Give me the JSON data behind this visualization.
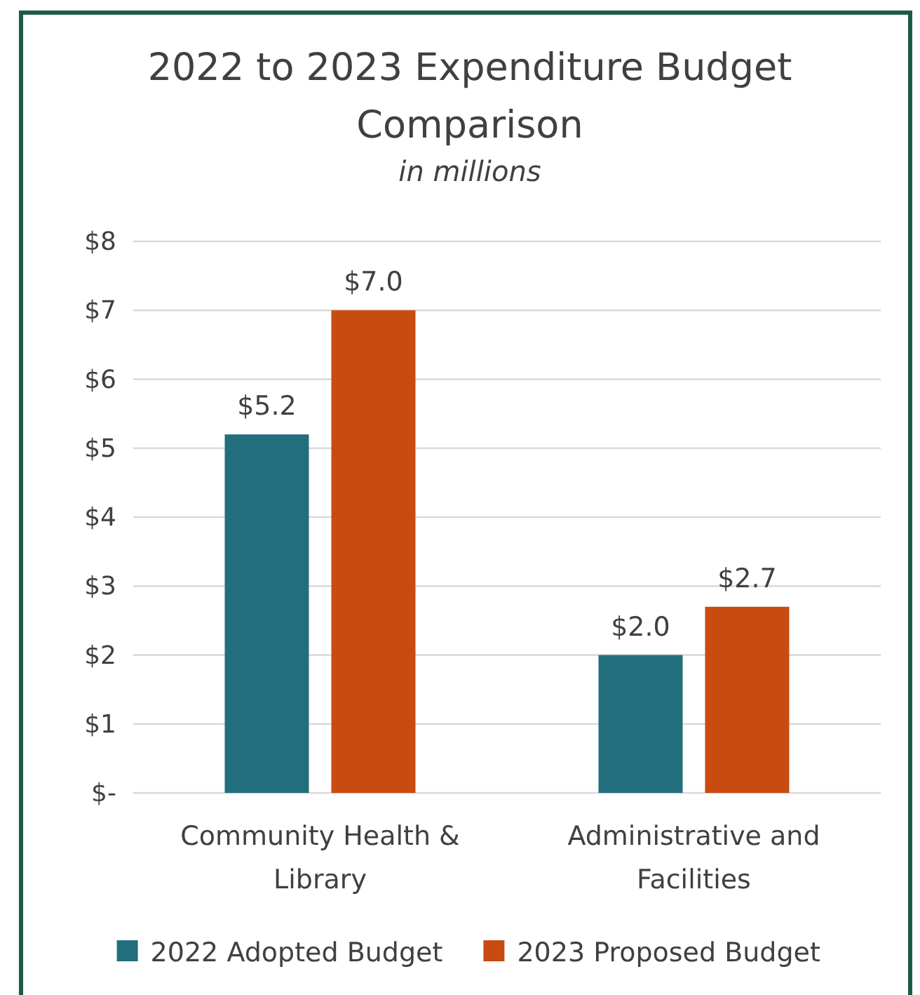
{
  "chart_data": {
    "type": "bar",
    "title": "2022 to 2023 Expenditure Budget Comparison",
    "subtitle": "in millions",
    "categories": [
      "Community Health & Library",
      "Administrative and Facilities"
    ],
    "series": [
      {
        "name": "2022 Adopted Budget",
        "color": "#236e7d",
        "values": [
          5.2,
          2.0
        ],
        "value_labels": [
          "$5.2",
          "$2.0"
        ]
      },
      {
        "name": "2023 Proposed Budget",
        "color": "#c84b11",
        "values": [
          7.0,
          2.7
        ],
        "value_labels": [
          "$7.0",
          "$2.7"
        ]
      }
    ],
    "ylim": [
      0,
      8
    ],
    "yticks": [
      {
        "value": 0,
        "label": "$-"
      },
      {
        "value": 1,
        "label": "$1"
      },
      {
        "value": 2,
        "label": "$2"
      },
      {
        "value": 3,
        "label": "$3"
      },
      {
        "value": 4,
        "label": "$4"
      },
      {
        "value": 5,
        "label": "$5"
      },
      {
        "value": 6,
        "label": "$6"
      },
      {
        "value": 7,
        "label": "$7"
      },
      {
        "value": 8,
        "label": "$8"
      }
    ],
    "grid": "y",
    "legend": "bottom"
  }
}
